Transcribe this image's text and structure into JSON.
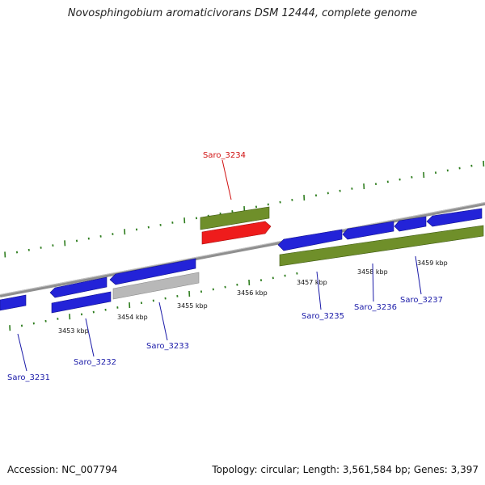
{
  "title": "Novosphingobium aromaticivorans DSM 12444, complete genome",
  "footer": {
    "accession": "Accession: NC_007794",
    "topology": "Topology: circular; Length: 3,561,584 bp; Genes: 3,397"
  },
  "colors": {
    "backbone": "#8a8a8a",
    "ticks": "#2e7d1e",
    "cds_forward": "#2323d8",
    "cds_reverse": "#2323d8",
    "gene_olive": "#6f8f2a",
    "highlight": "#ee1c1c",
    "pseudo": "#b8b8b8",
    "label_blue": "#1a1aa8",
    "label_red": "#d01010"
  },
  "scale": {
    "labels": [
      "3453 kbp",
      "3454 kbp",
      "3455 kbp",
      "3456 kbp",
      "3457 kbp",
      "3458 kbp",
      "3459 kbp"
    ]
  },
  "genes": [
    {
      "id": "Saro_3231",
      "color": "label_blue"
    },
    {
      "id": "Saro_3232",
      "color": "label_blue"
    },
    {
      "id": "Saro_3233",
      "color": "label_blue"
    },
    {
      "id": "Saro_3234",
      "color": "label_red"
    },
    {
      "id": "Saro_3235",
      "color": "label_blue"
    },
    {
      "id": "Saro_3236",
      "color": "label_blue"
    },
    {
      "id": "Saro_3237",
      "color": "label_blue"
    }
  ]
}
